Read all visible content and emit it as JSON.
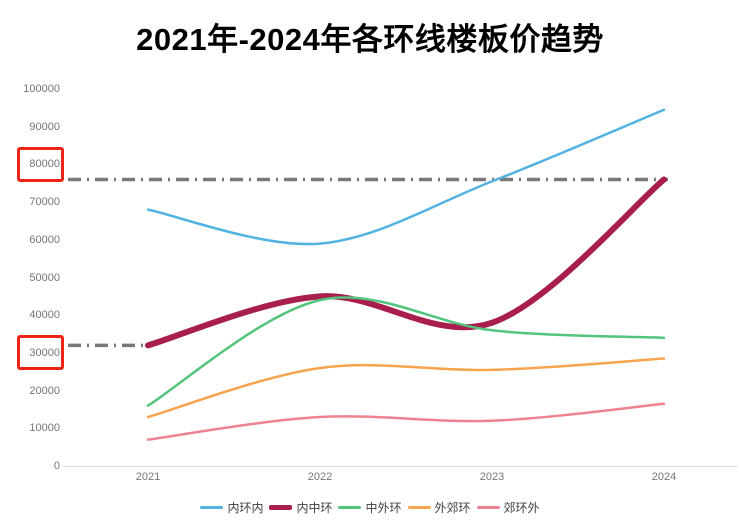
{
  "page": {
    "background": "#ffffff"
  },
  "chart_data": {
    "type": "line",
    "title": "2021年-2024年各环线楼板价趋势",
    "x": [
      "2021",
      "2022",
      "2023",
      "2024"
    ],
    "xlabel": "",
    "ylabel": "",
    "ylim": [
      0,
      100000
    ],
    "ytick_step": 10000,
    "grid": false,
    "smooth": true,
    "legend_position": "bottom",
    "series": [
      {
        "name": "内环内",
        "color": "#52b3e2",
        "line_width": 2.5,
        "values": [
          68000,
          59000,
          75500,
          94500
        ]
      },
      {
        "name": "内中环",
        "color": "#a81f4d",
        "line_width": 6,
        "values": [
          32000,
          45000,
          38000,
          76000
        ]
      },
      {
        "name": "中外环",
        "color": "#53c47b",
        "line_width": 2.5,
        "values": [
          16000,
          44000,
          36000,
          34000
        ]
      },
      {
        "name": "外郊环",
        "color": "#f8a44f",
        "line_width": 2.5,
        "values": [
          13000,
          26000,
          25500,
          28500
        ]
      },
      {
        "name": "郊环外",
        "color": "#ee8290",
        "line_width": 2.5,
        "values": [
          7000,
          13000,
          12000,
          16500
        ]
      }
    ],
    "annotations": {
      "reference_lines": [
        {
          "value": 76000,
          "style": "dash-dot",
          "color": "#787878",
          "to_year": "2024"
        },
        {
          "value": 32000,
          "style": "dash-dot",
          "color": "#787878",
          "to_year": "2021"
        }
      ],
      "highlighted_yticks": [
        {
          "value": 80000,
          "box_color": "#ee2419"
        },
        {
          "value": 30000,
          "box_color": "#ee2419"
        }
      ]
    },
    "axis": {
      "line_color": "#d9d9d9",
      "tick_label_color": "#757575"
    }
  }
}
